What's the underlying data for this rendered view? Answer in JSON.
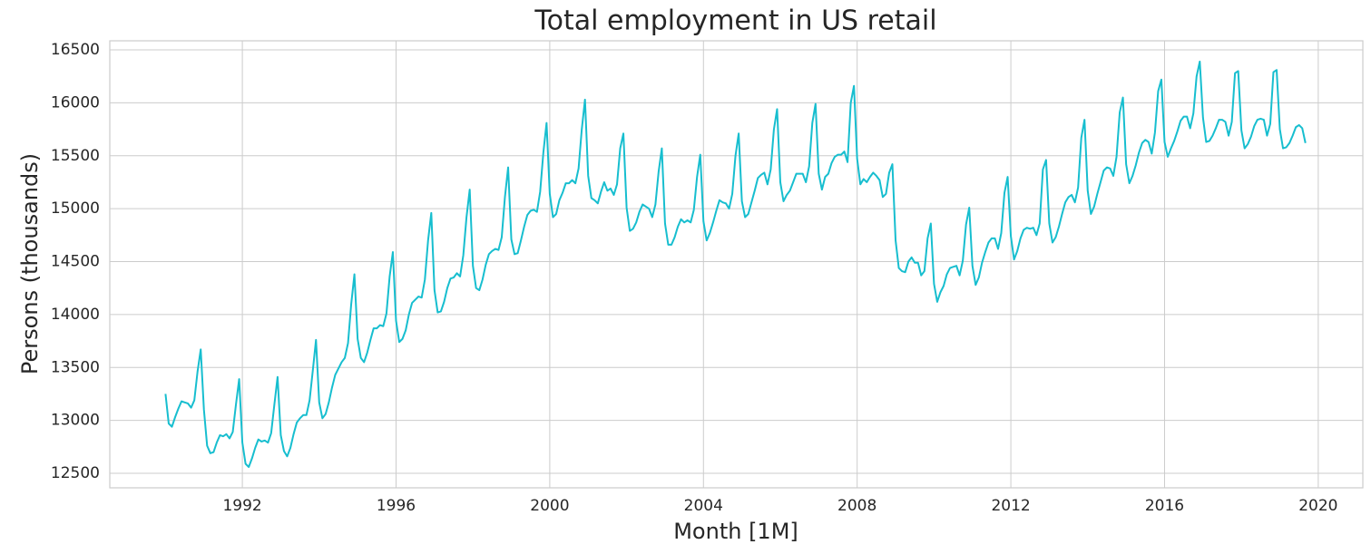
{
  "chart_data": {
    "type": "line",
    "title": "Total employment in US retail",
    "xlabel": "Month [1M]",
    "ylabel": "Persons (thousands)",
    "color": "#17becf",
    "grid": true,
    "xlim": [
      1988.55,
      2021.16
    ],
    "xticks": [
      1992,
      1996,
      2000,
      2004,
      2008,
      2012,
      2016,
      2020
    ],
    "ylim": [
      12363,
      16586
    ],
    "yticks": [
      12500,
      13000,
      13500,
      14000,
      14500,
      15000,
      15500,
      16000,
      16500
    ],
    "x": [
      "1990-01",
      "1990-02",
      "1990-03",
      "1990-04",
      "1990-05",
      "1990-06",
      "1990-07",
      "1990-08",
      "1990-09",
      "1990-10",
      "1990-11",
      "1990-12",
      "1991-01",
      "1991-02",
      "1991-03",
      "1991-04",
      "1991-05",
      "1991-06",
      "1991-07",
      "1991-08",
      "1991-09",
      "1991-10",
      "1991-11",
      "1991-12",
      "1992-01",
      "1992-02",
      "1992-03",
      "1992-04",
      "1992-05",
      "1992-06",
      "1992-07",
      "1992-08",
      "1992-09",
      "1992-10",
      "1992-11",
      "1992-12",
      "1993-01",
      "1993-02",
      "1993-03",
      "1993-04",
      "1993-05",
      "1993-06",
      "1993-07",
      "1993-08",
      "1993-09",
      "1993-10",
      "1993-11",
      "1993-12",
      "1994-01",
      "1994-02",
      "1994-03",
      "1994-04",
      "1994-05",
      "1994-06",
      "1994-07",
      "1994-08",
      "1994-09",
      "1994-10",
      "1994-11",
      "1994-12",
      "1995-01",
      "1995-02",
      "1995-03",
      "1995-04",
      "1995-05",
      "1995-06",
      "1995-07",
      "1995-08",
      "1995-09",
      "1995-10",
      "1995-11",
      "1995-12",
      "1996-01",
      "1996-02",
      "1996-03",
      "1996-04",
      "1996-05",
      "1996-06",
      "1996-07",
      "1996-08",
      "1996-09",
      "1996-10",
      "1996-11",
      "1996-12",
      "1997-01",
      "1997-02",
      "1997-03",
      "1997-04",
      "1997-05",
      "1997-06",
      "1997-07",
      "1997-08",
      "1997-09",
      "1997-10",
      "1997-11",
      "1997-12",
      "1998-01",
      "1998-02",
      "1998-03",
      "1998-04",
      "1998-05",
      "1998-06",
      "1998-07",
      "1998-08",
      "1998-09",
      "1998-10",
      "1998-11",
      "1998-12",
      "1999-01",
      "1999-02",
      "1999-03",
      "1999-04",
      "1999-05",
      "1999-06",
      "1999-07",
      "1999-08",
      "1999-09",
      "1999-10",
      "1999-11",
      "1999-12",
      "2000-01",
      "2000-02",
      "2000-03",
      "2000-04",
      "2000-05",
      "2000-06",
      "2000-07",
      "2000-08",
      "2000-09",
      "2000-10",
      "2000-11",
      "2000-12",
      "2001-01",
      "2001-02",
      "2001-03",
      "2001-04",
      "2001-05",
      "2001-06",
      "2001-07",
      "2001-08",
      "2001-09",
      "2001-10",
      "2001-11",
      "2001-12",
      "2002-01",
      "2002-02",
      "2002-03",
      "2002-04",
      "2002-05",
      "2002-06",
      "2002-07",
      "2002-08",
      "2002-09",
      "2002-10",
      "2002-11",
      "2002-12",
      "2003-01",
      "2003-02",
      "2003-03",
      "2003-04",
      "2003-05",
      "2003-06",
      "2003-07",
      "2003-08",
      "2003-09",
      "2003-10",
      "2003-11",
      "2003-12",
      "2004-01",
      "2004-02",
      "2004-03",
      "2004-04",
      "2004-05",
      "2004-06",
      "2004-07",
      "2004-08",
      "2004-09",
      "2004-10",
      "2004-11",
      "2004-12",
      "2005-01",
      "2005-02",
      "2005-03",
      "2005-04",
      "2005-05",
      "2005-06",
      "2005-07",
      "2005-08",
      "2005-09",
      "2005-10",
      "2005-11",
      "2005-12",
      "2006-01",
      "2006-02",
      "2006-03",
      "2006-04",
      "2006-05",
      "2006-06",
      "2006-07",
      "2006-08",
      "2006-09",
      "2006-10",
      "2006-11",
      "2006-12",
      "2007-01",
      "2007-02",
      "2007-03",
      "2007-04",
      "2007-05",
      "2007-06",
      "2007-07",
      "2007-08",
      "2007-09",
      "2007-10",
      "2007-11",
      "2007-12",
      "2008-01",
      "2008-02",
      "2008-03",
      "2008-04",
      "2008-05",
      "2008-06",
      "2008-07",
      "2008-08",
      "2008-09",
      "2008-10",
      "2008-11",
      "2008-12",
      "2009-01",
      "2009-02",
      "2009-03",
      "2009-04",
      "2009-05",
      "2009-06",
      "2009-07",
      "2009-08",
      "2009-09",
      "2009-10",
      "2009-11",
      "2009-12",
      "2010-01",
      "2010-02",
      "2010-03",
      "2010-04",
      "2010-05",
      "2010-06",
      "2010-07",
      "2010-08",
      "2010-09",
      "2010-10",
      "2010-11",
      "2010-12",
      "2011-01",
      "2011-02",
      "2011-03",
      "2011-04",
      "2011-05",
      "2011-06",
      "2011-07",
      "2011-08",
      "2011-09",
      "2011-10",
      "2011-11",
      "2011-12",
      "2012-01",
      "2012-02",
      "2012-03",
      "2012-04",
      "2012-05",
      "2012-06",
      "2012-07",
      "2012-08",
      "2012-09",
      "2012-10",
      "2012-11",
      "2012-12",
      "2013-01",
      "2013-02",
      "2013-03",
      "2013-04",
      "2013-05",
      "2013-06",
      "2013-07",
      "2013-08",
      "2013-09",
      "2013-10",
      "2013-11",
      "2013-12",
      "2014-01",
      "2014-02",
      "2014-03",
      "2014-04",
      "2014-05",
      "2014-06",
      "2014-07",
      "2014-08",
      "2014-09",
      "2014-10",
      "2014-11",
      "2014-12",
      "2015-01",
      "2015-02",
      "2015-03",
      "2015-04",
      "2015-05",
      "2015-06",
      "2015-07",
      "2015-08",
      "2015-09",
      "2015-10",
      "2015-11",
      "2015-12",
      "2016-01",
      "2016-02",
      "2016-03",
      "2016-04",
      "2016-05",
      "2016-06",
      "2016-07",
      "2016-08",
      "2016-09",
      "2016-10",
      "2016-11",
      "2016-12",
      "2017-01",
      "2017-02",
      "2017-03",
      "2017-04",
      "2017-05",
      "2017-06",
      "2017-07",
      "2017-08",
      "2017-09",
      "2017-10",
      "2017-11",
      "2017-12",
      "2018-01",
      "2018-02",
      "2018-03",
      "2018-04",
      "2018-05",
      "2018-06",
      "2018-07",
      "2018-08",
      "2018-09",
      "2018-10",
      "2018-11",
      "2018-12",
      "2019-01",
      "2019-02",
      "2019-03",
      "2019-04",
      "2019-05",
      "2019-06",
      "2019-07",
      "2019-08",
      "2019-09"
    ],
    "values": [
      13250,
      12970,
      12940,
      13030,
      13110,
      13180,
      13170,
      13160,
      13120,
      13190,
      13460,
      13670,
      13100,
      12760,
      12690,
      12700,
      12790,
      12860,
      12850,
      12870,
      12830,
      12890,
      13150,
      13390,
      12790,
      12590,
      12560,
      12640,
      12740,
      12820,
      12800,
      12810,
      12790,
      12880,
      13150,
      13410,
      12860,
      12710,
      12660,
      12740,
      12870,
      12980,
      13020,
      13050,
      13050,
      13190,
      13470,
      13760,
      13170,
      13020,
      13060,
      13170,
      13310,
      13430,
      13490,
      13550,
      13590,
      13730,
      14100,
      14380,
      13770,
      13590,
      13550,
      13640,
      13760,
      13870,
      13870,
      13900,
      13890,
      14010,
      14360,
      14590,
      13940,
      13740,
      13770,
      13850,
      14000,
      14110,
      14140,
      14170,
      14160,
      14330,
      14700,
      14960,
      14230,
      14020,
      14030,
      14120,
      14250,
      14340,
      14350,
      14390,
      14360,
      14560,
      14920,
      15180,
      14460,
      14250,
      14230,
      14330,
      14470,
      14570,
      14600,
      14620,
      14610,
      14730,
      15110,
      15390,
      14710,
      14570,
      14580,
      14700,
      14830,
      14940,
      14980,
      14990,
      14970,
      15160,
      15530,
      15810,
      15140,
      14920,
      14950,
      15080,
      15150,
      15240,
      15240,
      15270,
      15240,
      15380,
      15750,
      16030,
      15310,
      15100,
      15080,
      15050,
      15160,
      15250,
      15170,
      15190,
      15130,
      15230,
      15570,
      15710,
      15010,
      14790,
      14810,
      14870,
      14970,
      15040,
      15020,
      15000,
      14920,
      15040,
      15350,
      15570,
      14860,
      14660,
      14660,
      14730,
      14830,
      14900,
      14870,
      14890,
      14870,
      14990,
      15300,
      15510,
      14880,
      14700,
      14770,
      14870,
      14980,
      15080,
      15060,
      15050,
      15000,
      15140,
      15500,
      15710,
      15070,
      14920,
      14950,
      15060,
      15170,
      15290,
      15320,
      15340,
      15230,
      15370,
      15750,
      15940,
      15250,
      15070,
      15130,
      15170,
      15250,
      15330,
      15330,
      15330,
      15250,
      15400,
      15810,
      15990,
      15330,
      15180,
      15300,
      15330,
      15430,
      15490,
      15510,
      15510,
      15540,
      15440,
      16000,
      16160,
      15470,
      15230,
      15280,
      15250,
      15300,
      15340,
      15310,
      15270,
      15110,
      15140,
      15340,
      15420,
      14700,
      14440,
      14410,
      14400,
      14500,
      14540,
      14490,
      14490,
      14370,
      14410,
      14720,
      14860,
      14290,
      14120,
      14210,
      14270,
      14380,
      14440,
      14450,
      14460,
      14370,
      14510,
      14850,
      15010,
      14460,
      14280,
      14350,
      14490,
      14590,
      14680,
      14720,
      14720,
      14620,
      14770,
      15150,
      15300,
      14740,
      14520,
      14600,
      14720,
      14800,
      14820,
      14810,
      14820,
      14750,
      14860,
      15370,
      15460,
      14860,
      14680,
      14730,
      14830,
      14950,
      15060,
      15110,
      15130,
      15060,
      15200,
      15670,
      15840,
      15170,
      14950,
      15020,
      15140,
      15250,
      15360,
      15390,
      15380,
      15310,
      15490,
      15910,
      16050,
      15420,
      15240,
      15310,
      15410,
      15530,
      15620,
      15650,
      15630,
      15520,
      15720,
      16110,
      16220,
      15630,
      15490,
      15570,
      15640,
      15730,
      15830,
      15870,
      15870,
      15760,
      15900,
      16250,
      16390,
      15860,
      15630,
      15640,
      15690,
      15760,
      15840,
      15840,
      15820,
      15690,
      15820,
      16280,
      16300,
      15740,
      15570,
      15610,
      15680,
      15780,
      15840,
      15850,
      15840,
      15690,
      15800,
      16290,
      16310,
      15750,
      15570,
      15580,
      15620,
      15690,
      15770,
      15790,
      15760,
      15620
    ]
  }
}
